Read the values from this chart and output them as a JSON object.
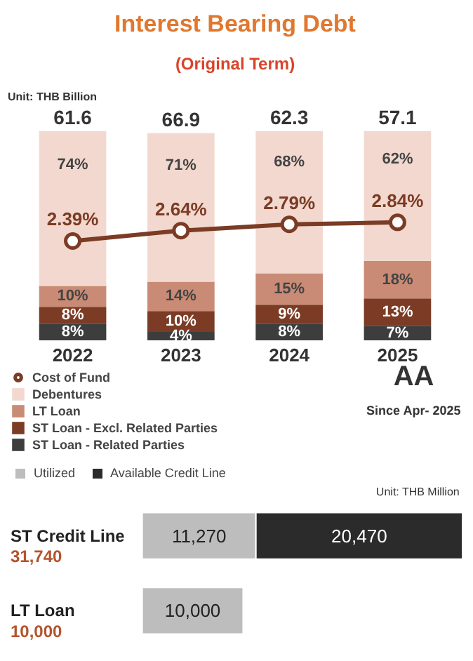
{
  "chart_data": [
    {
      "type": "bar",
      "title": "Interest Bearing Debt",
      "subtitle": "(Original Term)",
      "stacked": true,
      "annotations": [
        "Unit: THB Billion",
        "AA",
        "Since Apr- 2025",
        {
          "text": "61.6",
          "x": "2022",
          "y": 100
        },
        {
          "text": "66.9",
          "x": "2023",
          "y": 99
        },
        {
          "text": "62.3",
          "x": "2024",
          "y": 100
        },
        {
          "text": "57.1",
          "x": "2025",
          "y": 100
        }
      ],
      "categories": [
        "2022",
        "2023",
        "2024",
        "2025"
      ],
      "series": [
        {
          "name": "ST Loan - Related Parties",
          "color": "#3d3d3d",
          "values": [
            8,
            4,
            8,
            7
          ],
          "value_labels": [
            "8%",
            "4%",
            "8%",
            "7%"
          ]
        },
        {
          "name": "ST Loan - Excl. Related Parties",
          "color": "#7b3b24",
          "values": [
            8,
            10,
            9,
            13
          ],
          "value_labels": [
            "8%",
            "10%",
            "9%",
            "13%"
          ]
        },
        {
          "name": "LT Loan",
          "color": "#c98b75",
          "values": [
            10,
            14,
            15,
            18
          ],
          "value_labels": [
            "10%",
            "14%",
            "15%",
            "18%"
          ]
        },
        {
          "name": "Debentures",
          "color": "#f2d8ce",
          "values": [
            74,
            71,
            68,
            62
          ],
          "value_labels": [
            "74%",
            "71%",
            "68%",
            "62%"
          ]
        },
        {
          "name": "Cost of Fund",
          "type": "line",
          "axis": "y2",
          "marker": "circle",
          "color": "#7b3b24",
          "values": [
            2.39,
            2.64,
            2.79,
            2.84
          ],
          "value_labels": [
            "2.39%",
            "2.64%",
            "2.79%",
            "2.84%"
          ]
        }
      ],
      "tick_labels": "x",
      "legend": "bottom"
    },
    {
      "type": "bar",
      "orientation": "horizontal",
      "stacked": true,
      "annotations": [
        "Unit: THB Million",
        "31,740",
        "10,000"
      ],
      "categories": [
        "ST Credit Line",
        "LT Loan"
      ],
      "series": [
        {
          "name": "Utilized",
          "color": "#bdbdbd",
          "values": [
            11270,
            10000
          ],
          "value_labels": [
            "11,270",
            "10,000"
          ]
        },
        {
          "name": "Available Credit Line",
          "color": "#2b2b2b",
          "values": [
            20470,
            null
          ],
          "value_labels": [
            "20,470",
            null
          ]
        }
      ],
      "tick_labels": "y",
      "legend": "top"
    }
  ]
}
